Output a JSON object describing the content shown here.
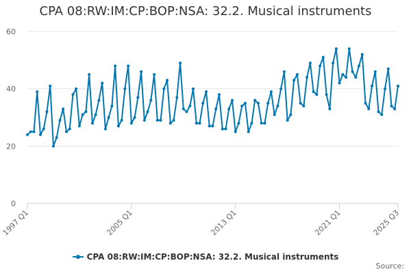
{
  "chart_data": {
    "type": "line",
    "title": "CPA 08:RW:IM:CP:BOP:NSA: 32.2. Musical instruments",
    "xlabel": "",
    "ylabel": "",
    "ylim": [
      0,
      60
    ],
    "yticks": [
      0,
      20,
      40,
      60
    ],
    "grid": "horizontal",
    "legend": "bottom-center",
    "color": "#0077b3",
    "x_tick_labels": [
      "1997 Q1",
      "2005 Q1",
      "2013 Q1",
      "2021 Q1",
      "2025 Q3"
    ],
    "x_tick_indices": [
      0,
      32,
      64,
      96,
      114
    ],
    "series": [
      {
        "name": "CPA 08:RW:IM:CP:BOP:NSA: 32.2. Musical instruments",
        "x": [
          "1997 Q1",
          "1997 Q2",
          "1997 Q3",
          "1997 Q4",
          "1998 Q1",
          "1998 Q2",
          "1998 Q3",
          "1998 Q4",
          "1999 Q1",
          "1999 Q2",
          "1999 Q3",
          "1999 Q4",
          "2000 Q1",
          "2000 Q2",
          "2000 Q3",
          "2000 Q4",
          "2001 Q1",
          "2001 Q2",
          "2001 Q3",
          "2001 Q4",
          "2002 Q1",
          "2002 Q2",
          "2002 Q3",
          "2002 Q4",
          "2003 Q1",
          "2003 Q2",
          "2003 Q3",
          "2003 Q4",
          "2004 Q1",
          "2004 Q2",
          "2004 Q3",
          "2004 Q4",
          "2005 Q1",
          "2005 Q2",
          "2005 Q3",
          "2005 Q4",
          "2006 Q1",
          "2006 Q2",
          "2006 Q3",
          "2006 Q4",
          "2007 Q1",
          "2007 Q2",
          "2007 Q3",
          "2007 Q4",
          "2008 Q1",
          "2008 Q2",
          "2008 Q3",
          "2008 Q4",
          "2009 Q1",
          "2009 Q2",
          "2009 Q3",
          "2009 Q4",
          "2010 Q1",
          "2010 Q2",
          "2010 Q3",
          "2010 Q4",
          "2011 Q1",
          "2011 Q2",
          "2011 Q3",
          "2011 Q4",
          "2012 Q1",
          "2012 Q2",
          "2012 Q3",
          "2012 Q4",
          "2013 Q1",
          "2013 Q2",
          "2013 Q3",
          "2013 Q4",
          "2014 Q1",
          "2014 Q2",
          "2014 Q3",
          "2014 Q4",
          "2015 Q1",
          "2015 Q2",
          "2015 Q3",
          "2015 Q4",
          "2016 Q1",
          "2016 Q2",
          "2016 Q3",
          "2016 Q4",
          "2017 Q1",
          "2017 Q2",
          "2017 Q3",
          "2017 Q4",
          "2018 Q1",
          "2018 Q2",
          "2018 Q3",
          "2018 Q4",
          "2019 Q1",
          "2019 Q2",
          "2019 Q3",
          "2019 Q4",
          "2020 Q1",
          "2020 Q2",
          "2020 Q3",
          "2020 Q4",
          "2021 Q1",
          "2021 Q2",
          "2021 Q3",
          "2021 Q4",
          "2022 Q1",
          "2022 Q2",
          "2022 Q3",
          "2022 Q4",
          "2023 Q1",
          "2023 Q2",
          "2023 Q3",
          "2023 Q4",
          "2024 Q1",
          "2024 Q2",
          "2024 Q3",
          "2024 Q4",
          "2025 Q1",
          "2025 Q2",
          "2025 Q3"
        ],
        "values": [
          24,
          25,
          25,
          39,
          24,
          26,
          32,
          41,
          20,
          23,
          29,
          33,
          25,
          26,
          38,
          40,
          27,
          31,
          32,
          45,
          28,
          31,
          36,
          42,
          26,
          30,
          34,
          48,
          27,
          29,
          40,
          48,
          28,
          30,
          37,
          46,
          29,
          32,
          36,
          45,
          29,
          29,
          40,
          43,
          28,
          29,
          37,
          49,
          33,
          32,
          34,
          40,
          28,
          28,
          35,
          39,
          27,
          27,
          33,
          38,
          26,
          26,
          33,
          36,
          25,
          28,
          34,
          35,
          25,
          28,
          36,
          35,
          28,
          28,
          35,
          39,
          31,
          34,
          40,
          46,
          29,
          31,
          43,
          45,
          35,
          34,
          44,
          49,
          39,
          38,
          48,
          51,
          38,
          33,
          49,
          54,
          42,
          45,
          44,
          54,
          46,
          44,
          48,
          52,
          35,
          33,
          41,
          46,
          32,
          31,
          40,
          47,
          34,
          33,
          41
        ]
      }
    ]
  },
  "source_label": "Source:"
}
